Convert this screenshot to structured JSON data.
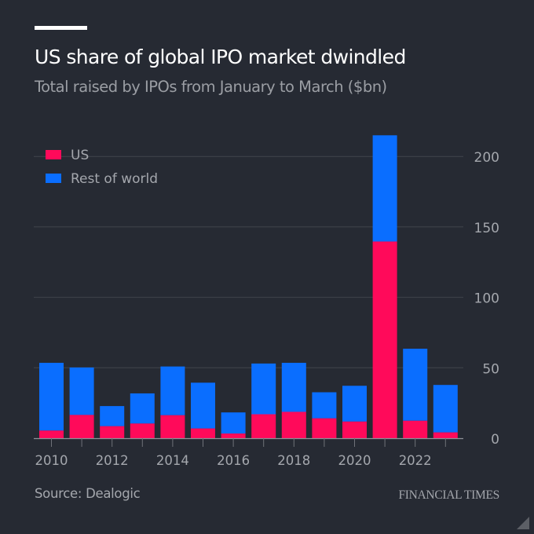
{
  "header": {
    "title": "US share of global IPO market dwindled",
    "subtitle": "Total raised by IPOs from January to March ($bn)"
  },
  "footer": {
    "source": "Source: Dealogic",
    "brand": "FINANCIAL TIMES"
  },
  "colors": {
    "background": "#262a33",
    "us": "#ff0a5a",
    "rest_of_world": "#0a6eff",
    "gridline": "#40444c",
    "axis_text": "#a4a7ad"
  },
  "chart_data": {
    "type": "bar",
    "stacked": true,
    "title": "US share of global IPO market dwindled",
    "subtitle": "Total raised by IPOs from January to March ($bn)",
    "xlabel": "",
    "ylabel": "",
    "categories": [
      "2010",
      "2011",
      "2012",
      "2013",
      "2014",
      "2015",
      "2016",
      "2017",
      "2018",
      "2019",
      "2020",
      "2021",
      "2022",
      "2023"
    ],
    "x_tick_labels": [
      "2010",
      "2012",
      "2014",
      "2016",
      "2018",
      "2020",
      "2022"
    ],
    "series": [
      {
        "name": "US",
        "color": "#ff0a5a",
        "values": [
          5.4,
          16.5,
          8.5,
          10.4,
          16.3,
          6.9,
          3.3,
          17.0,
          18.7,
          14.1,
          11.8,
          139.6,
          12.4,
          4.1
        ]
      },
      {
        "name": "Rest of world",
        "color": "#0a6eff",
        "values": [
          48.1,
          33.7,
          14.3,
          21.4,
          34.6,
          32.5,
          15.0,
          36.0,
          34.8,
          18.5,
          25.4,
          75.4,
          51.1,
          33.7
        ]
      }
    ],
    "ylim": [
      0,
      220
    ],
    "y_ticks": [
      0,
      50,
      100,
      150,
      200
    ],
    "y_axis_side": "right",
    "grid": true,
    "legend": {
      "position": "top-left",
      "entries": [
        "US",
        "Rest of world"
      ]
    },
    "source": "Source: Dealogic"
  }
}
